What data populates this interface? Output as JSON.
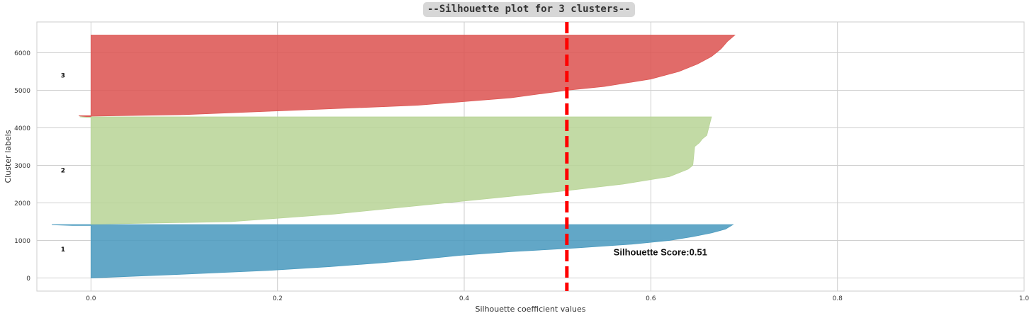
{
  "chart_data": {
    "type": "area",
    "title": "--Silhouette plot for 3 clusters--",
    "xlabel": "Silhouette coefficient values",
    "ylabel": "Cluster labels",
    "xlim": [
      -0.058,
      1.0
    ],
    "ylim": [
      -350,
      6820
    ],
    "xticks": [
      0.0,
      0.2,
      0.4,
      0.6,
      0.8,
      1.0
    ],
    "xtick_labels": [
      "0.0",
      "0.2",
      "0.4",
      "0.6",
      "0.8",
      "1.0"
    ],
    "yticks": [
      0,
      1000,
      2000,
      3000,
      4000,
      5000,
      6000
    ],
    "ytick_labels": [
      "0",
      "1000",
      "2000",
      "3000",
      "4000",
      "5000",
      "6000"
    ],
    "grid": true,
    "series": [
      {
        "label": "1",
        "color": "#4c9bbf",
        "y_start": 0,
        "y_end": 1420,
        "label_y": 760,
        "sorted_profile": [
          [
            0,
            0.0
          ],
          [
            100,
            0.1
          ],
          [
            200,
            0.19
          ],
          [
            300,
            0.255
          ],
          [
            400,
            0.31
          ],
          [
            500,
            0.355
          ],
          [
            600,
            0.395
          ],
          [
            700,
            0.45
          ],
          [
            800,
            0.52
          ],
          [
            900,
            0.58
          ],
          [
            1000,
            0.62
          ],
          [
            1100,
            0.645
          ],
          [
            1200,
            0.665
          ],
          [
            1300,
            0.68
          ],
          [
            1420,
            0.688
          ]
        ],
        "negative_tail": [
          [
            1400,
            -0.02
          ],
          [
            1418,
            -0.042
          ]
        ]
      },
      {
        "label": "2",
        "color": "#b9d598",
        "y_start": 1430,
        "y_end": 4290,
        "label_y": 2870,
        "sorted_profile": [
          [
            1430,
            0.0
          ],
          [
            1500,
            0.15
          ],
          [
            1700,
            0.26
          ],
          [
            2000,
            0.38
          ],
          [
            2300,
            0.5
          ],
          [
            2500,
            0.57
          ],
          [
            2700,
            0.62
          ],
          [
            2900,
            0.64
          ],
          [
            3000,
            0.645
          ],
          [
            3500,
            0.647
          ],
          [
            3600,
            0.652
          ],
          [
            3700,
            0.655
          ],
          [
            3800,
            0.66
          ],
          [
            4000,
            0.662
          ],
          [
            4290,
            0.665
          ]
        ],
        "negative_tail": [
          [
            4280,
            -0.005
          ],
          [
            4295,
            -0.012
          ]
        ]
      },
      {
        "label": "3",
        "color": "#dd5754",
        "y_start": 4310,
        "y_end": 6470,
        "label_y": 5400,
        "sorted_profile": [
          [
            4310,
            0.0
          ],
          [
            4350,
            0.1
          ],
          [
            4450,
            0.2
          ],
          [
            4600,
            0.35
          ],
          [
            4800,
            0.45
          ],
          [
            5000,
            0.51
          ],
          [
            5100,
            0.55
          ],
          [
            5300,
            0.6
          ],
          [
            5500,
            0.63
          ],
          [
            5700,
            0.65
          ],
          [
            5900,
            0.665
          ],
          [
            6100,
            0.675
          ],
          [
            6300,
            0.682
          ],
          [
            6470,
            0.69
          ]
        ],
        "negative_tail": [
          [
            4300,
            -0.005
          ],
          [
            4320,
            -0.013
          ]
        ]
      }
    ],
    "average_line": {
      "x": 0.51,
      "color": "#ff0000",
      "style": "dashed"
    },
    "annotation": {
      "text": "Silhouette Score:0.51",
      "x": 0.56,
      "y": 680
    }
  }
}
